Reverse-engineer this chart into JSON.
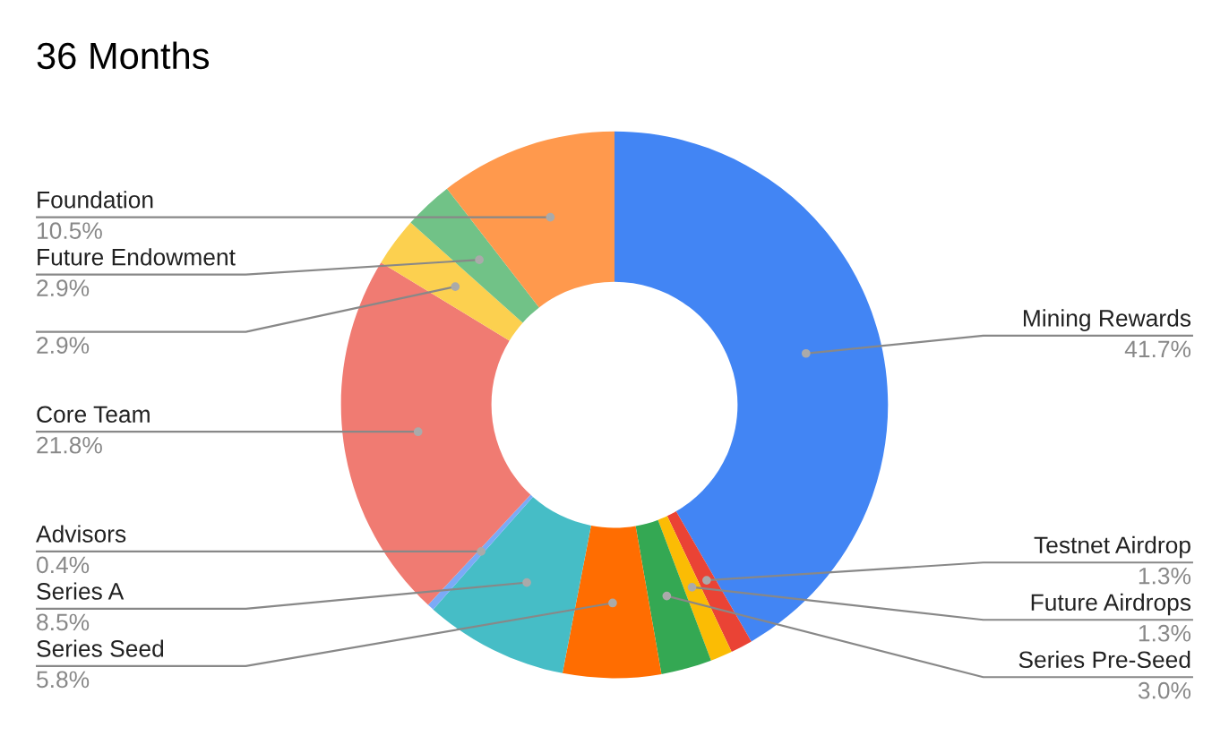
{
  "chart_data": {
    "type": "donut",
    "title": "36 Months",
    "categories": [
      "Mining Rewards",
      "Testnet Airdrop",
      "Future Airdrops",
      "Series Pre-Seed",
      "Series Seed",
      "Series A",
      "Advisors",
      "Core Team",
      null,
      "Future Endowment",
      "Foundation"
    ],
    "values": [
      41.7,
      1.3,
      1.3,
      3.0,
      5.8,
      8.5,
      0.4,
      21.8,
      2.9,
      2.9,
      10.5
    ],
    "value_labels": [
      "41.7%",
      "1.3%",
      "1.3%",
      "3.0%",
      "5.8%",
      "8.5%",
      "0.4%",
      "21.8%",
      "2.9%",
      "2.9%",
      "10.5%"
    ],
    "colors": [
      "#4285f4",
      "#ea4335",
      "#fbbc04",
      "#34a853",
      "#ff6d01",
      "#46bdc6",
      "#7baaf7",
      "#f07b72",
      "#fcd04f",
      "#71c287",
      "#ff994d"
    ],
    "legend": false
  }
}
